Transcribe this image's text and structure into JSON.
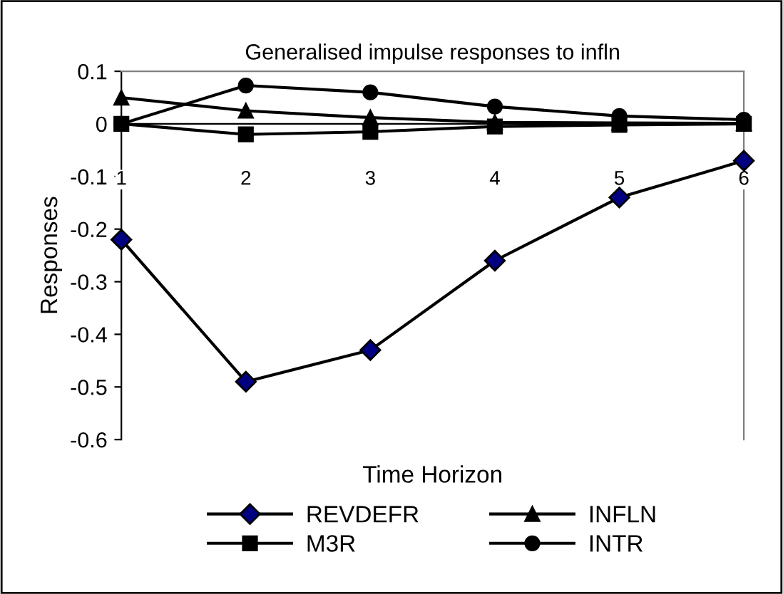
{
  "chart_data": {
    "type": "line",
    "title": "Generalised impulse responses to infln",
    "xlabel": "Time Horizon",
    "ylabel": "Responses",
    "categories": [
      "1",
      "2",
      "3",
      "4",
      "5",
      "6"
    ],
    "series": [
      {
        "name": "REVDEFR",
        "color": "#000080",
        "marker": "diamond",
        "values": [
          -0.22,
          -0.49,
          -0.43,
          -0.26,
          -0.14,
          -0.07
        ]
      },
      {
        "name": "M3R",
        "color": "#000000",
        "marker": "square",
        "values": [
          0,
          -0.02,
          -0.015,
          -0.005,
          -0.002,
          0
        ]
      },
      {
        "name": "INFLN",
        "color": "#000000",
        "marker": "triangle",
        "values": [
          0.05,
          0.025,
          0.012,
          0.003,
          0.002,
          0.001
        ]
      },
      {
        "name": "INTR",
        "color": "#000000",
        "marker": "circle",
        "values": [
          0,
          0.073,
          0.06,
          0.033,
          0.015,
          0.008
        ]
      }
    ],
    "ylim": [
      -0.6,
      0.1
    ],
    "yticks": [
      -0.6,
      -0.5,
      -0.4,
      -0.3,
      -0.2,
      -0.1,
      0,
      0.1
    ],
    "grid": false,
    "legend": "bottom",
    "line_style": "solid"
  }
}
